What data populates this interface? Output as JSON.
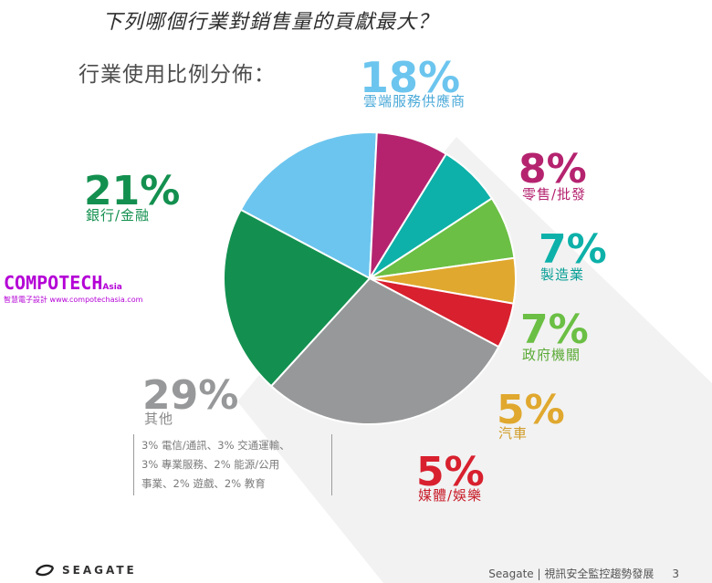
{
  "question": "下列哪個行業對銷售量的貢獻最大？",
  "subtitle": "行業使用比例分佈：",
  "chart_data": {
    "type": "pie",
    "slices": [
      {
        "label": "雲端服務供應商",
        "value": 18,
        "pct_text": "18%",
        "color": "#6cc5ee"
      },
      {
        "label": "零售/批發",
        "value": 8,
        "pct_text": "8%",
        "color": "#b5236f"
      },
      {
        "label": "製造業",
        "value": 7,
        "pct_text": "7%",
        "color": "#0db1a9"
      },
      {
        "label": "政府機關",
        "value": 7,
        "pct_text": "7%",
        "color": "#6bbf44"
      },
      {
        "label": "汽車",
        "value": 5,
        "pct_text": "5%",
        "color": "#e0a82e"
      },
      {
        "label": "媒體/娛樂",
        "value": 5,
        "pct_text": "5%",
        "color": "#d8202e"
      },
      {
        "label": "其他",
        "value": 29,
        "pct_text": "29%",
        "color": "#979899"
      },
      {
        "label": "銀行/金融",
        "value": 21,
        "pct_text": "21%",
        "color": "#13904f"
      }
    ],
    "other_breakdown": [
      "3% 電信/通訊、3% 交通運輸、",
      "3% 專業服務、2% 能源/公用",
      "事業、2% 遊戲、2% 教育"
    ]
  },
  "watermark": {
    "main": "COMPOTECH",
    "asia": "Asia",
    "sub": "智慧電子設計 www.compotechasia.com"
  },
  "footer": {
    "brand": "SEAGATE",
    "caption": "Seagate | 視訊安全監控趨勢發展",
    "page": "3"
  }
}
